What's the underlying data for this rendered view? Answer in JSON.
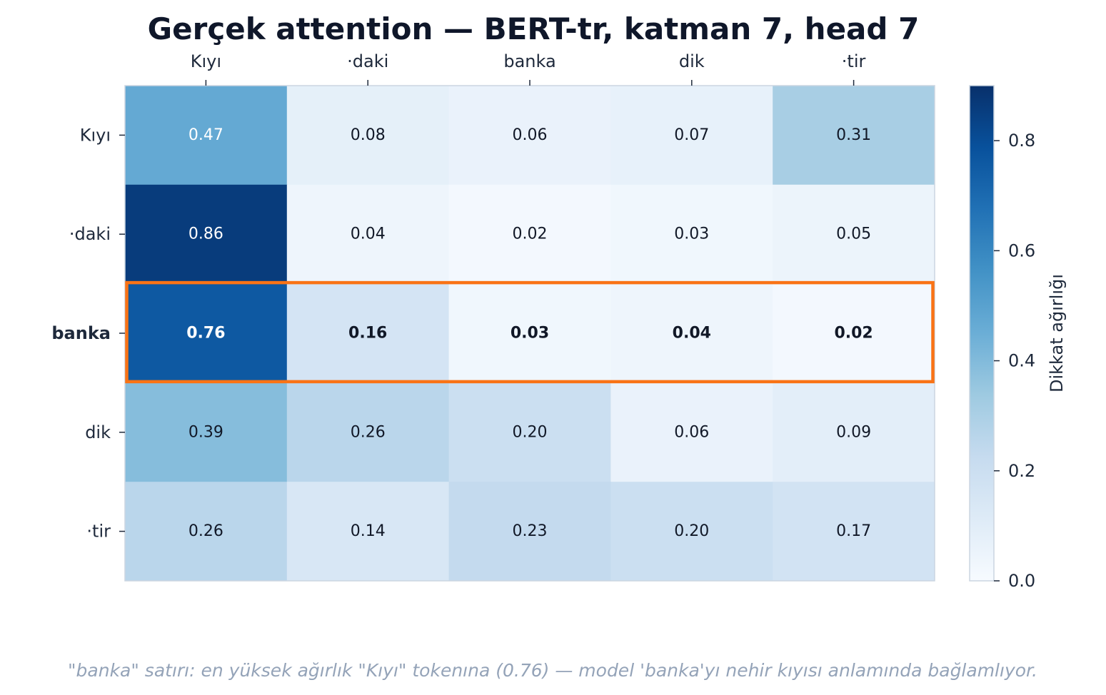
{
  "chart_data": {
    "type": "heatmap",
    "title": "Gerçek attention — BERT-tr, katman 7, head 7",
    "x_categories": [
      "Kıyı",
      "·daki",
      "banka",
      "dik",
      "·tir"
    ],
    "y_categories": [
      "Kıyı",
      "·daki",
      "banka",
      "dik",
      "·tir"
    ],
    "values": [
      [
        0.47,
        0.08,
        0.06,
        0.07,
        0.31
      ],
      [
        0.86,
        0.04,
        0.02,
        0.03,
        0.05
      ],
      [
        0.76,
        0.16,
        0.03,
        0.04,
        0.02
      ],
      [
        0.39,
        0.26,
        0.2,
        0.06,
        0.09
      ],
      [
        0.26,
        0.14,
        0.23,
        0.2,
        0.17
      ]
    ],
    "value_labels": [
      [
        "0.47",
        "0.08",
        "0.06",
        "0.07",
        "0.31"
      ],
      [
        "0.86",
        "0.04",
        "0.02",
        "0.03",
        "0.05"
      ],
      [
        "0.76",
        "0.16",
        "0.03",
        "0.04",
        "0.02"
      ],
      [
        "0.39",
        "0.26",
        "0.20",
        "0.06",
        "0.09"
      ],
      [
        "0.26",
        "0.14",
        "0.23",
        "0.20",
        "0.17"
      ]
    ],
    "colormap": "Blues",
    "vmin": 0.0,
    "vmax": 0.9,
    "highlight_row": 2,
    "highlight_color": "#f97316",
    "colorbar": {
      "label": "Dikkat ağırlığı",
      "ticks": [
        0.0,
        0.2,
        0.4,
        0.6,
        0.8
      ],
      "tick_labels": [
        "0.0",
        "0.2",
        "0.4",
        "0.6",
        "0.8"
      ]
    },
    "x_tick_position": "top"
  },
  "footnote": "\"banka\" satırı: en yüksek ağırlık \"Kıyı\" tokenına (0.76) — model 'banka'yı nehir kıyısı anlamında bağlamlıyor."
}
